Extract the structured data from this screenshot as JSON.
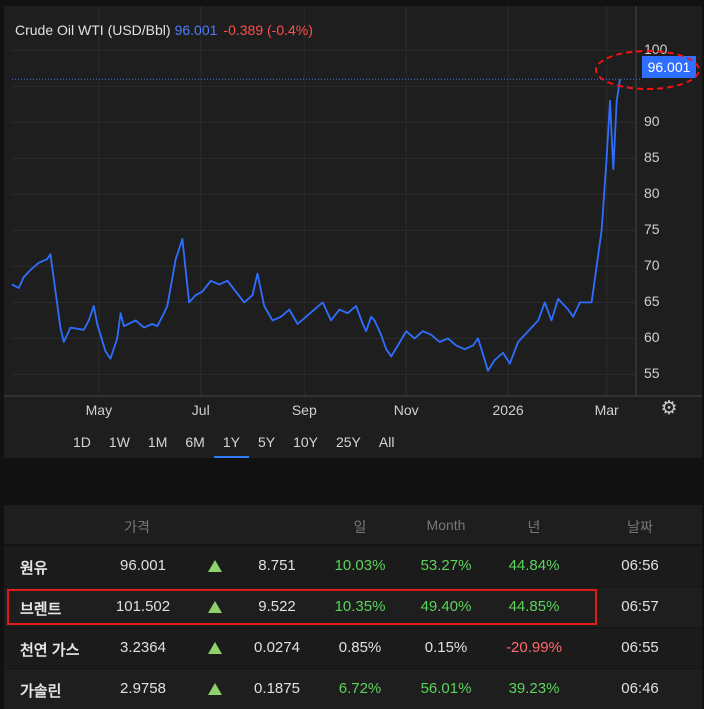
{
  "legend": {
    "name": "Crude Oil WTI (USD/Bbl)",
    "price": "96.001",
    "change": "-0.389 (-0.4%)"
  },
  "price_tag": "96.001",
  "colors": {
    "line": "#2f6fff",
    "up": "#5bd45b",
    "down": "#ff4f4f",
    "highlight": "#e11a1a"
  },
  "ranges": [
    {
      "label": "1D"
    },
    {
      "label": "1W"
    },
    {
      "label": "1M"
    },
    {
      "label": "6M"
    },
    {
      "label": "1Y",
      "active": true
    },
    {
      "label": "5Y"
    },
    {
      "label": "10Y"
    },
    {
      "label": "25Y"
    },
    {
      "label": "All"
    }
  ],
  "chart_data": {
    "type": "line",
    "title": "",
    "xlabel": "",
    "ylabel": "",
    "x_tick_labels": [
      "May",
      "Jul",
      "Sep",
      "Nov",
      "2026",
      "Mar"
    ],
    "y_ticks": [
      55,
      60,
      65,
      70,
      75,
      80,
      85,
      90,
      95,
      100
    ],
    "ylim": [
      52,
      102
    ],
    "series": [
      {
        "name": "Crude Oil WTI (USD/Bbl)",
        "values": [
          67.5,
          67.0,
          68.5,
          69.5,
          70.5,
          71.0,
          71.7,
          70.0,
          61.5,
          59.5,
          61.5,
          61.2,
          62.5,
          64.5,
          62.0,
          60.5,
          58.2,
          57.2,
          60.0,
          63.5,
          61.7,
          62.5,
          61.5,
          62.0,
          61.7,
          63.5,
          64.5,
          71.0,
          73.8,
          65.0,
          66.0,
          66.5,
          68.0,
          67.5,
          68.0,
          66.5,
          65.0,
          66.0,
          69.0,
          64.5,
          62.5,
          63.0,
          64.0,
          62.0,
          63.0,
          64.0,
          65.0,
          62.5,
          64.0,
          63.5,
          64.5,
          62.0,
          61.0,
          63.0,
          62.5,
          60.5,
          58.5,
          57.5,
          59.0,
          61.0,
          60.0,
          61.0,
          60.5,
          59.5,
          60.0,
          59.0,
          58.5,
          59.0,
          60.0,
          58.5,
          55.5,
          57.0,
          58.0,
          56.5,
          59.5,
          60.5,
          61.5,
          62.5,
          65.0,
          62.5,
          65.5,
          64.0,
          63.0,
          65.0,
          65.0,
          70.0,
          75.0,
          85.0,
          93.0,
          83.5,
          93.0,
          96.0
        ],
        "dates": [
          "2025-03-10",
          "2025-03-14",
          "2025-03-17",
          "2025-03-21",
          "2025-03-26",
          "2025-03-31",
          "2025-04-02",
          "2025-04-03",
          "2025-04-08",
          "2025-04-10",
          "2025-04-14",
          "2025-04-22",
          "2025-04-25",
          "2025-04-28",
          "2025-04-30",
          "2025-05-02",
          "2025-05-05",
          "2025-05-08",
          "2025-05-12",
          "2025-05-14",
          "2025-05-16",
          "2025-05-23",
          "2025-05-28",
          "2025-06-02",
          "2025-06-05",
          "2025-06-09",
          "2025-06-11",
          "2025-06-16",
          "2025-06-20",
          "2025-06-24",
          "2025-06-28",
          "2025-07-02",
          "2025-07-07",
          "2025-07-12",
          "2025-07-17",
          "2025-07-22",
          "2025-07-27",
          "2025-08-01",
          "2025-08-04",
          "2025-08-08",
          "2025-08-13",
          "2025-08-18",
          "2025-08-23",
          "2025-08-28",
          "2025-09-02",
          "2025-09-07",
          "2025-09-12",
          "2025-09-17",
          "2025-09-22",
          "2025-09-27",
          "2025-10-02",
          "2025-10-06",
          "2025-10-08",
          "2025-10-11",
          "2025-10-13",
          "2025-10-17",
          "2025-10-20",
          "2025-10-23",
          "2025-10-27",
          "2025-11-01",
          "2025-11-06",
          "2025-11-11",
          "2025-11-16",
          "2025-11-21",
          "2025-11-26",
          "2025-12-01",
          "2025-12-06",
          "2025-12-11",
          "2025-12-14",
          "2025-12-16",
          "2025-12-20",
          "2025-12-24",
          "2025-12-29",
          "2026-01-02",
          "2026-01-07",
          "2026-01-11",
          "2026-01-15",
          "2026-01-19",
          "2026-01-23",
          "2026-01-27",
          "2026-01-31",
          "2026-02-06",
          "2026-02-09",
          "2026-02-13",
          "2026-02-20",
          "2026-02-23",
          "2026-02-26",
          "2026-03-01",
          "2026-03-03",
          "2026-03-05",
          "2026-03-07",
          "2026-03-09"
        ]
      }
    ],
    "grid": true,
    "legend": "top-left"
  },
  "table": {
    "headers": {
      "price": "가격",
      "day": "일",
      "month": "Month",
      "year": "년",
      "date": "날짜"
    },
    "rows": [
      {
        "name": "원유",
        "price": "96.001",
        "change": "8.751",
        "day": "10.03%",
        "month": "53.27%",
        "year": "44.84%",
        "time": "06:56",
        "day_color": "green",
        "month_color": "green",
        "year_color": "green"
      },
      {
        "name": "브렌트",
        "price": "101.502",
        "change": "9.522",
        "day": "10.35%",
        "month": "49.40%",
        "year": "44.85%",
        "time": "06:57",
        "day_color": "green",
        "month_color": "green",
        "year_color": "green"
      },
      {
        "name": "천연 가스",
        "price": "3.2364",
        "change": "0.0274",
        "day": "0.85%",
        "month": "0.15%",
        "year": "-20.99%",
        "time": "06:55",
        "day_color": "plain",
        "month_color": "plain",
        "year_color": "red"
      },
      {
        "name": "가솔린",
        "price": "2.9758",
        "change": "0.1875",
        "day": "6.72%",
        "month": "56.01%",
        "year": "39.23%",
        "time": "06:46",
        "day_color": "green",
        "month_color": "green",
        "year_color": "green"
      }
    ]
  }
}
